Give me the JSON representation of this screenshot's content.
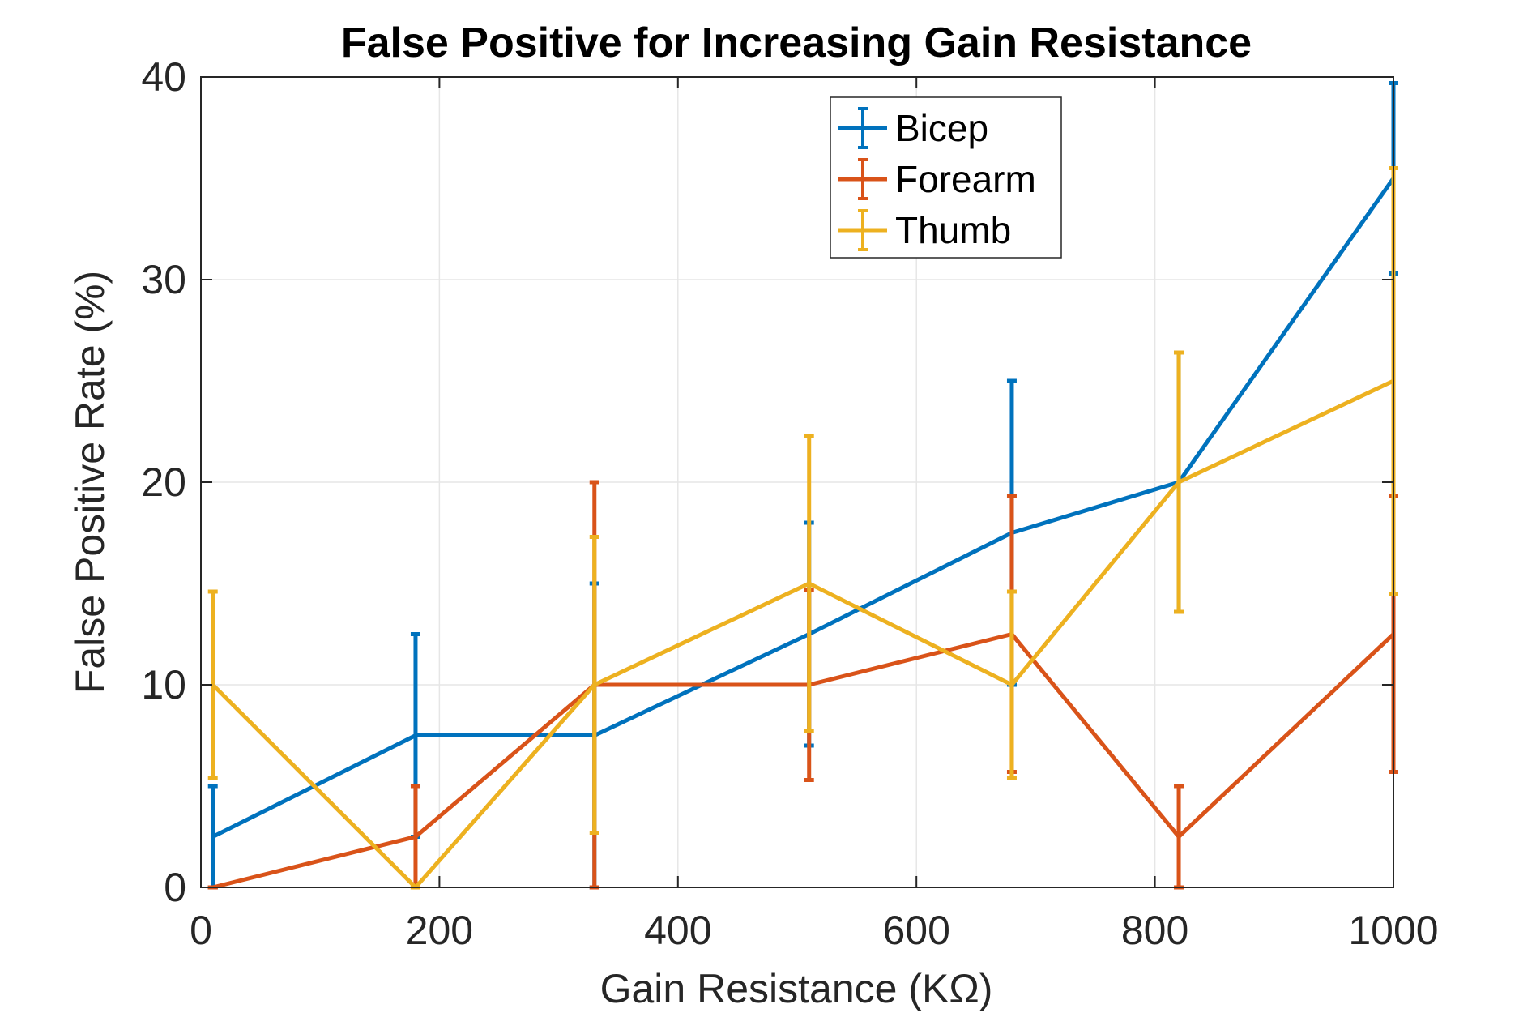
{
  "chart_data": {
    "type": "line",
    "title": "False Positive for Increasing Gain Resistance",
    "xlabel": "Gain Resistance (KΩ)",
    "ylabel": "False Positive Rate (%)",
    "xlim": [
      0,
      1000
    ],
    "ylim": [
      0,
      40
    ],
    "xticks": [
      0,
      200,
      400,
      600,
      800,
      1000
    ],
    "yticks": [
      0,
      10,
      20,
      30,
      40
    ],
    "grid": true,
    "legend_position": "top-right",
    "error_bars": true,
    "series": [
      {
        "name": "Bicep",
        "color": "#0072BD",
        "x": [
          10,
          180,
          330,
          510,
          680,
          820,
          1000
        ],
        "y": [
          2.5,
          7.5,
          7.5,
          12.5,
          17.5,
          20,
          35
        ],
        "err_low": [
          0,
          2.5,
          0,
          7,
          10,
          13.6,
          30.3
        ],
        "err_high": [
          5,
          12.5,
          15,
          18,
          25,
          26.4,
          39.7
        ]
      },
      {
        "name": "Forearm",
        "color": "#D95319",
        "x": [
          10,
          180,
          330,
          510,
          680,
          820,
          1000
        ],
        "y": [
          0,
          2.5,
          10,
          10,
          12.5,
          2.5,
          12.5
        ],
        "err_low": [
          0,
          0,
          0,
          5.3,
          5.7,
          0,
          5.7
        ],
        "err_high": [
          0,
          5,
          20,
          14.7,
          19.3,
          5,
          19.3
        ]
      },
      {
        "name": "Thumb",
        "color": "#EDB120",
        "x": [
          10,
          180,
          330,
          510,
          680,
          820,
          1000
        ],
        "y": [
          10,
          0,
          10,
          15,
          10,
          20,
          25
        ],
        "err_low": [
          5.4,
          0,
          2.7,
          7.7,
          5.4,
          13.6,
          14.5
        ],
        "err_high": [
          14.6,
          0,
          17.3,
          22.3,
          14.6,
          26.4,
          35.5
        ]
      }
    ]
  }
}
